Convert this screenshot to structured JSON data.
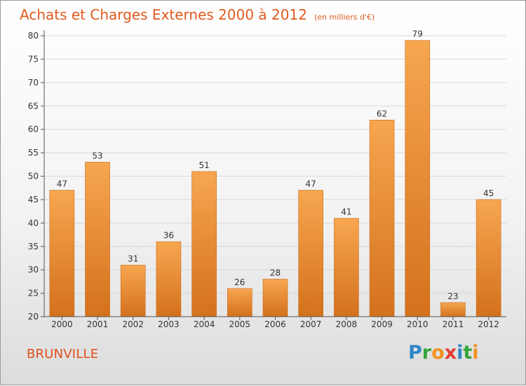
{
  "title": "Achats et Charges Externes 2000 à 2012",
  "unit": "(en milliers d'€)",
  "city": "BRUNVILLE",
  "logo": {
    "text": "Proxiti",
    "letters": [
      {
        "ch": "P",
        "color": "#2f86c8"
      },
      {
        "ch": "r",
        "color": "#35a639"
      },
      {
        "ch": "o",
        "color": "#f29120"
      },
      {
        "ch": "x",
        "color": "#e53a2f"
      },
      {
        "ch": "i",
        "color": "#2f86c8"
      },
      {
        "ch": "t",
        "color": "#35a639"
      },
      {
        "ch": "i",
        "color": "#f29120"
      }
    ]
  },
  "colors": {
    "bar_light": "#f7a650",
    "bar_dark": "#d4711c",
    "title": "#e05a1e",
    "grid": "#d8d8d8"
  },
  "chart_data": {
    "type": "bar",
    "categories": [
      "2000",
      "2001",
      "2002",
      "2003",
      "2004",
      "2005",
      "2006",
      "2007",
      "2008",
      "2009",
      "2010",
      "2011",
      "2012"
    ],
    "values": [
      47,
      53,
      31,
      36,
      51,
      26,
      28,
      47,
      41,
      62,
      79,
      23,
      45
    ],
    "ylim": [
      20,
      80
    ],
    "yticks": [
      20,
      25,
      30,
      35,
      40,
      45,
      50,
      55,
      60,
      65,
      70,
      75,
      80
    ],
    "grid": true
  }
}
